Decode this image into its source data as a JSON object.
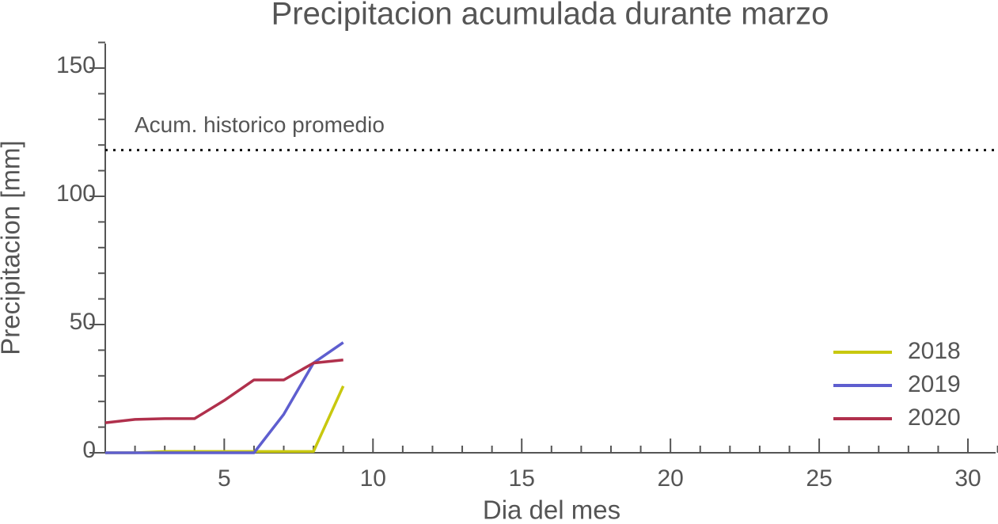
{
  "chart_data": {
    "type": "line",
    "title": "Precipitacion acumulada durante marzo",
    "xlabel": "Dia del mes",
    "ylabel": "Precipitacion [mm]",
    "x": [
      1,
      2,
      3,
      4,
      5,
      6,
      7,
      8,
      9
    ],
    "series": [
      {
        "name": "2018",
        "color": "#c8c80f",
        "values": [
          0,
          0,
          0.5,
          0.5,
          0.5,
          0.5,
          0.5,
          0.5,
          26
        ]
      },
      {
        "name": "2019",
        "color": "#5e5ecf",
        "values": [
          0,
          0,
          0,
          0,
          0,
          0,
          15,
          35,
          43
        ]
      },
      {
        "name": "2020",
        "color": "#b0304c",
        "values": [
          11.7,
          13,
          13.3,
          13.3,
          20.4,
          28.4,
          28.4,
          35,
          36.2
        ]
      }
    ],
    "reference": {
      "value": 118,
      "label": "Acum. historico promedio"
    },
    "xlim": [
      1,
      31
    ],
    "ylim": [
      0,
      160
    ],
    "xticks": [
      5,
      10,
      15,
      20,
      25,
      30
    ],
    "yticks": [
      0,
      50,
      100,
      150
    ],
    "xminorticks": [
      1,
      2,
      3,
      4,
      6,
      7,
      8,
      9,
      11,
      12,
      13,
      14,
      16,
      17,
      18,
      19,
      21,
      22,
      23,
      24,
      26,
      27,
      28,
      29,
      31
    ],
    "yminorticks": [
      10,
      20,
      30,
      40,
      60,
      70,
      80,
      90,
      110,
      120,
      130,
      140,
      160
    ],
    "legend": "lower right"
  }
}
